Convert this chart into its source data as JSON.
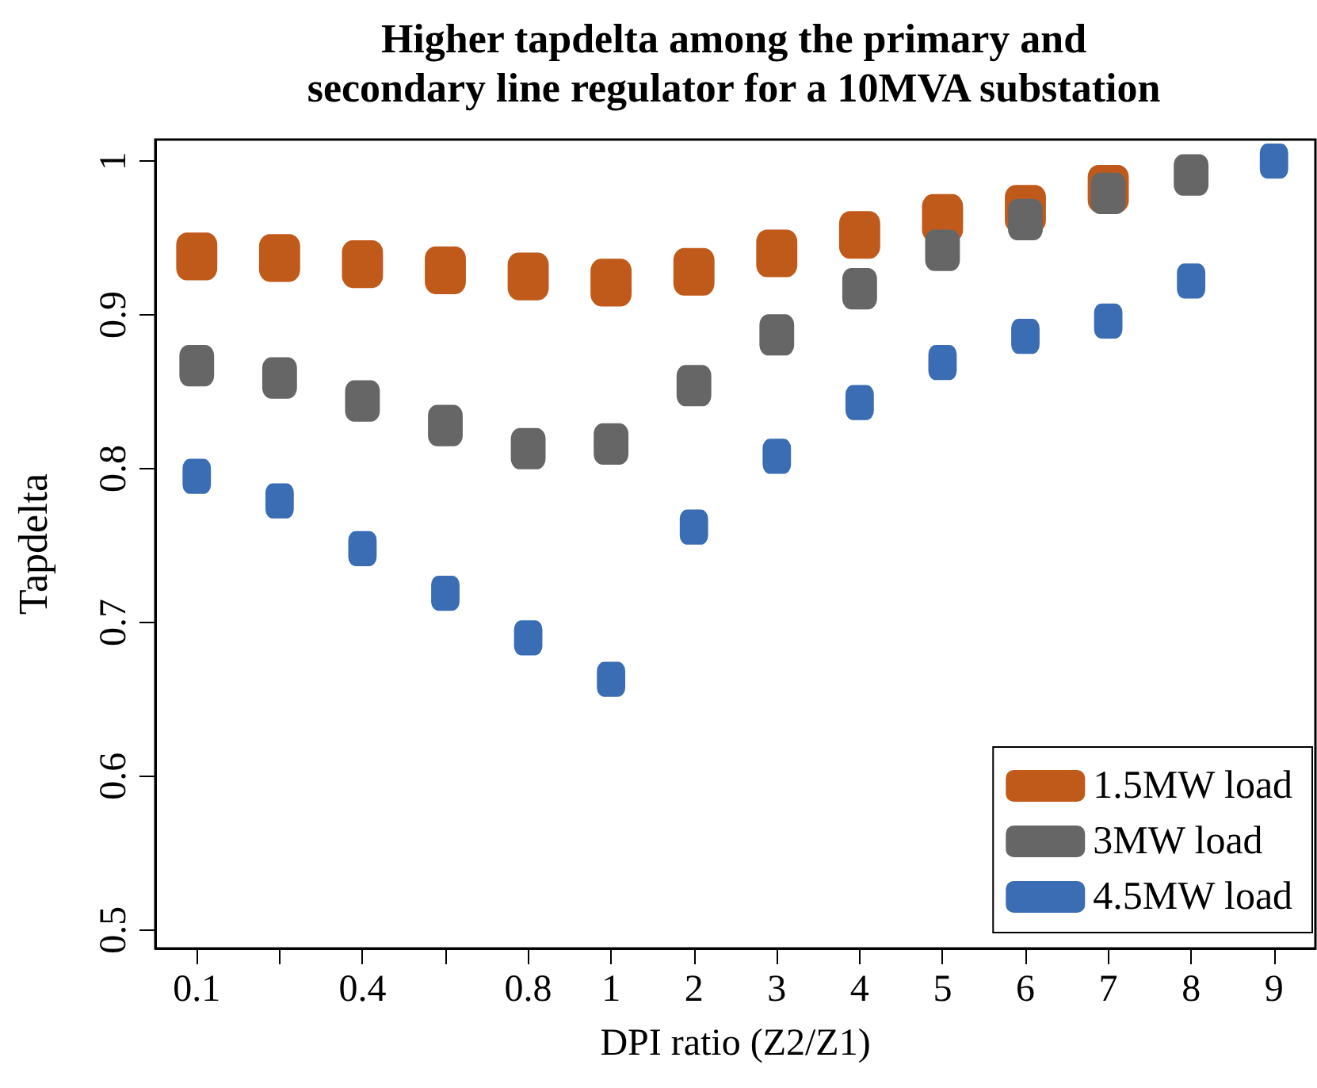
{
  "chart_data": {
    "type": "scatter",
    "title": "Higher tapdelta among the primary and\nsecondary line regulator for a 10MVA substation",
    "xlabel": "DPI ratio (Z2/Z1)",
    "ylabel": "Tapdelta",
    "categories": [
      "0.1",
      null,
      "0.4",
      null,
      "0.8",
      "1",
      "2",
      "3",
      "4",
      "5",
      "6",
      "7",
      "8",
      "9"
    ],
    "series": [
      {
        "name": "1.5MW load",
        "color": "#c05a1a",
        "values": [
          0.938,
          0.937,
          0.933,
          0.929,
          0.925,
          0.921,
          0.928,
          0.94,
          0.952,
          0.963,
          0.969,
          0.982,
          null,
          null
        ]
      },
      {
        "name": "3MW load",
        "color": "#666666",
        "values": [
          0.867,
          0.859,
          0.844,
          0.828,
          0.813,
          0.816,
          0.854,
          0.887,
          0.917,
          0.942,
          0.962,
          0.979,
          0.991,
          null
        ]
      },
      {
        "name": "4.5MW load",
        "color": "#3a6db3",
        "values": [
          0.795,
          0.779,
          0.748,
          0.719,
          0.69,
          0.663,
          0.762,
          0.808,
          0.843,
          0.869,
          0.886,
          0.896,
          0.922,
          1.0
        ]
      }
    ],
    "ylim": [
      0.488,
      1.014
    ],
    "yticks": [
      0.5,
      0.6,
      0.7,
      0.8,
      0.9,
      1
    ],
    "grid": false,
    "legend": "bottom right",
    "marker": "square"
  }
}
